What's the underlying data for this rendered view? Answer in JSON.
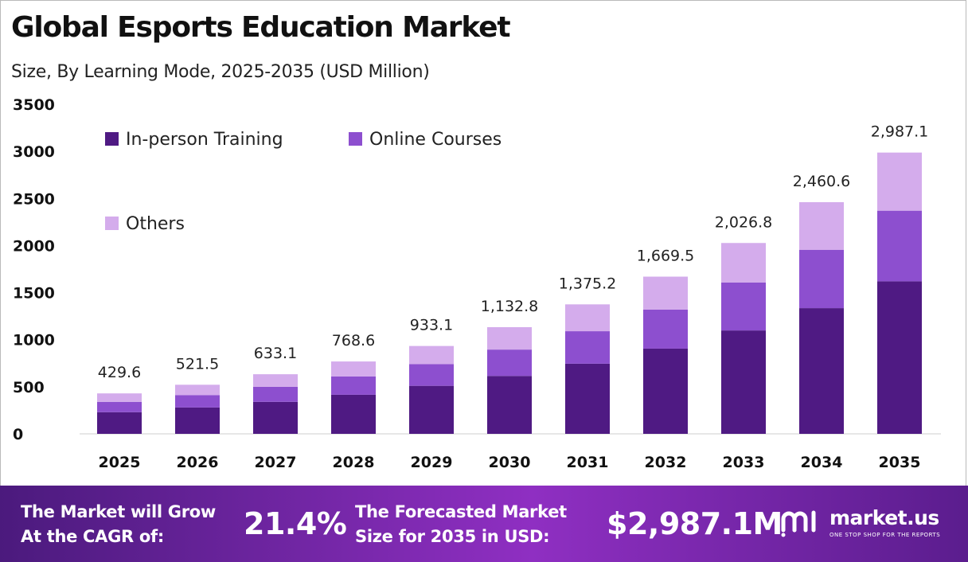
{
  "header": {
    "title": "Global Esports Education Market",
    "subtitle": "Size, By Learning Mode, 2025-2035 (USD Million)"
  },
  "chart_data": {
    "type": "bar",
    "stacked": true,
    "categories": [
      "2025",
      "2026",
      "2027",
      "2028",
      "2029",
      "2030",
      "2031",
      "2032",
      "2033",
      "2034",
      "2035"
    ],
    "series": [
      {
        "name": "In-person Training",
        "color": "#4f1a83",
        "values": [
          230,
          280,
          340,
          415,
          510,
          615,
          745,
          905,
          1098,
          1335,
          1620
        ]
      },
      {
        "name": "Online Courses",
        "color": "#8d4fcf",
        "values": [
          110,
          130,
          160,
          195,
          230,
          280,
          345,
          415,
          510,
          620,
          750
        ]
      },
      {
        "name": "Others",
        "color": "#d4acec",
        "values": [
          89.6,
          111.5,
          133.1,
          158.6,
          193.1,
          237.8,
          285.2,
          349.5,
          418.8,
          505.6,
          617.1
        ]
      }
    ],
    "totals": [
      "429.6",
      "521.5",
      "633.1",
      "768.6",
      "933.1",
      "1,132.8",
      "1,375.2",
      "1,669.5",
      "2,026.8",
      "2,460.6",
      "2,987.1"
    ],
    "y_ticks": [
      0,
      500,
      1000,
      1500,
      2000,
      2500,
      3000,
      3500
    ],
    "ylim": [
      0,
      3500
    ],
    "grid": false,
    "legend_position": "top-left",
    "xlabel": "",
    "ylabel": ""
  },
  "footer": {
    "cagr_label_line1": "The Market will Grow",
    "cagr_label_line2": "At the CAGR of:",
    "cagr_value": "21.4%",
    "forecast_label_line1": "The Forecasted Market",
    "forecast_label_line2": "Size for 2035 in USD:",
    "forecast_value": "$2,987.1M"
  },
  "brand": {
    "icon": "market-us-logo-icon",
    "name": "market.us",
    "tagline": "ONE STOP SHOP FOR THE REPORTS"
  }
}
